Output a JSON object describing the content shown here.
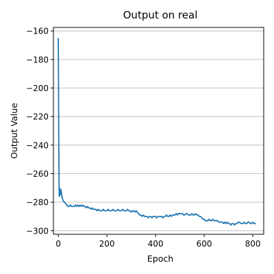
{
  "chart_data": {
    "type": "line",
    "title": "Output on real",
    "xlabel": "Epoch",
    "ylabel": "Output Value",
    "xlim": [
      -20,
      845
    ],
    "ylim": [
      -302.5,
      -157.5
    ],
    "xticks": [
      0,
      200,
      400,
      600,
      800
    ],
    "yticks": [
      -300,
      -280,
      -260,
      -240,
      -220,
      -200,
      -180,
      -160
    ],
    "grid": "horizontal",
    "series": [
      {
        "color": "#1f77b4",
        "x": [
          0,
          1,
          2,
          3,
          4,
          5,
          6,
          8,
          10,
          13,
          16,
          20,
          25,
          30,
          35,
          40,
          45,
          50,
          55,
          60,
          65,
          70,
          75,
          80,
          85,
          90,
          95,
          100,
          105,
          110,
          115,
          120,
          125,
          130,
          135,
          140,
          145,
          150,
          155,
          160,
          165,
          170,
          175,
          180,
          185,
          190,
          195,
          200,
          205,
          210,
          215,
          220,
          225,
          230,
          235,
          240,
          245,
          250,
          255,
          260,
          265,
          270,
          275,
          280,
          285,
          290,
          295,
          300,
          305,
          310,
          315,
          320,
          325,
          330,
          335,
          340,
          345,
          350,
          355,
          360,
          365,
          370,
          375,
          380,
          385,
          390,
          395,
          400,
          405,
          410,
          415,
          420,
          425,
          430,
          435,
          440,
          445,
          450,
          455,
          460,
          465,
          470,
          475,
          480,
          485,
          490,
          495,
          500,
          505,
          510,
          515,
          520,
          525,
          530,
          535,
          540,
          545,
          550,
          555,
          560,
          565,
          570,
          575,
          580,
          585,
          590,
          595,
          600,
          605,
          610,
          615,
          620,
          625,
          630,
          635,
          640,
          645,
          650,
          655,
          660,
          665,
          670,
          675,
          680,
          685,
          690,
          695,
          700,
          705,
          710,
          715,
          720,
          725,
          730,
          735,
          740,
          745,
          750,
          755,
          760,
          765,
          770,
          775,
          780,
          785,
          790,
          795,
          800,
          805,
          810,
          813
        ],
        "y": [
          -165,
          -200,
          -240,
          -262,
          -276,
          -270,
          -272,
          -275,
          -271,
          -273,
          -277,
          -279,
          -280,
          -281,
          -282,
          -283,
          -283,
          -282,
          -283,
          -283,
          -283,
          -282,
          -283,
          -282,
          -283,
          -282,
          -283,
          -282,
          -283,
          -283,
          -284,
          -283,
          -284,
          -284,
          -285,
          -284,
          -285,
          -285,
          -285,
          -286,
          -285,
          -286,
          -286,
          -286,
          -285,
          -286,
          -286,
          -286,
          -285,
          -286,
          -286,
          -286,
          -285,
          -286,
          -286,
          -286,
          -285,
          -286,
          -286,
          -286,
          -285,
          -286,
          -286,
          -286,
          -285,
          -286,
          -286,
          -287,
          -286,
          -286,
          -287,
          -286,
          -287,
          -288,
          -289,
          -289,
          -290,
          -289,
          -290,
          -290,
          -290,
          -291,
          -290,
          -290,
          -291,
          -290,
          -290,
          -290,
          -291,
          -290,
          -290,
          -290,
          -290,
          -291,
          -290,
          -290,
          -289,
          -290,
          -290,
          -289,
          -290,
          -289,
          -289,
          -289,
          -288,
          -289,
          -288,
          -288,
          -288,
          -288,
          -289,
          -289,
          -288,
          -288,
          -289,
          -289,
          -289,
          -288,
          -289,
          -289,
          -288,
          -289,
          -289,
          -290,
          -290,
          -291,
          -292,
          -292,
          -293,
          -293,
          -293,
          -292,
          -293,
          -293,
          -292,
          -293,
          -293,
          -293,
          -293,
          -294,
          -294,
          -294,
          -294,
          -295,
          -294,
          -295,
          -294,
          -295,
          -295,
          -296,
          -295,
          -295,
          -296,
          -295,
          -295,
          -294,
          -294,
          -295,
          -295,
          -295,
          -294,
          -295,
          -295,
          -294,
          -294,
          -295,
          -295,
          -294,
          -295,
          -295,
          -295
        ]
      }
    ]
  }
}
